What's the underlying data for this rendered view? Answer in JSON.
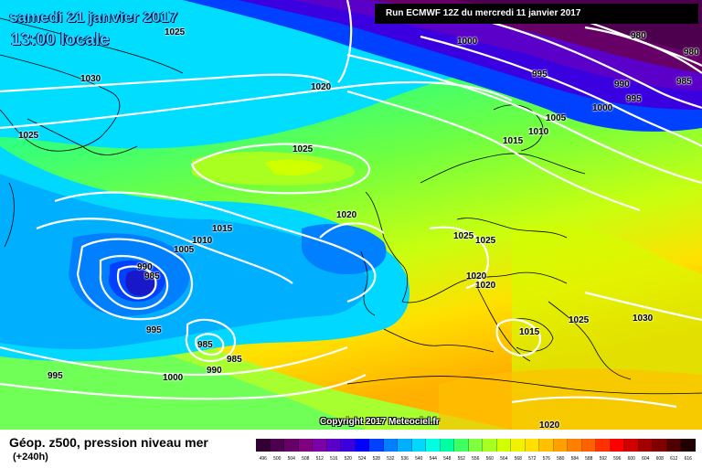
{
  "header": {
    "date": "samedi 21 janvier 2017",
    "time": "13:00 locale",
    "run_info": "Run ECMWF 12Z du mercredi 11 janvier 2017"
  },
  "copyright": "Copyright 2017 Meteociel.fr",
  "legend": {
    "title": "Géop. z500, pression niveau mer",
    "subtitle": "(+240h)",
    "scale_values": [
      "496",
      "500",
      "504",
      "508",
      "512",
      "516",
      "520",
      "524",
      "528",
      "532",
      "536",
      "540",
      "544",
      "548",
      "552",
      "556",
      "560",
      "564",
      "568",
      "572",
      "576",
      "580",
      "584",
      "588",
      "592",
      "596",
      "600",
      "604",
      "608",
      "612",
      "616"
    ],
    "scale_colors": [
      "#330033",
      "#4d004d",
      "#660066",
      "#800080",
      "#7a00a8",
      "#5a00c8",
      "#3a00e0",
      "#0000ff",
      "#0040ff",
      "#0080ff",
      "#00b0ff",
      "#00d8ff",
      "#00ffe0",
      "#00ffa0",
      "#40ff60",
      "#80ff40",
      "#a8ff20",
      "#d0ff00",
      "#f0f000",
      "#ffe000",
      "#ffc000",
      "#ffa000",
      "#ff8000",
      "#ff6000",
      "#ff3000",
      "#ff0000",
      "#d00000",
      "#a00000",
      "#800000",
      "#500000",
      "#200000"
    ]
  },
  "isobar_labels": [
    {
      "text": "1025",
      "name": "isobar-label-1025-a"
    },
    {
      "text": "1030",
      "name": "isobar-label-1030-a"
    },
    {
      "text": "1025",
      "name": "isobar-label-1025-b"
    },
    {
      "text": "1020",
      "name": "isobar-label-1020-a"
    },
    {
      "text": "1000",
      "name": "isobar-label-1000-a"
    },
    {
      "text": "980",
      "name": "isobar-label-980-a"
    },
    {
      "text": "980",
      "name": "isobar-label-980-b"
    },
    {
      "text": "995",
      "name": "isobar-label-995-a"
    },
    {
      "text": "990",
      "name": "isobar-label-990-a"
    },
    {
      "text": "985",
      "name": "isobar-label-985-a"
    },
    {
      "text": "995",
      "name": "isobar-label-995-b"
    },
    {
      "text": "1000",
      "name": "isobar-label-1000-b"
    },
    {
      "text": "1005",
      "name": "isobar-label-1005-a"
    },
    {
      "text": "1010",
      "name": "isobar-label-1010-a"
    },
    {
      "text": "1015",
      "name": "isobar-label-1015-a"
    },
    {
      "text": "1025",
      "name": "isobar-label-1025-c"
    },
    {
      "text": "1020",
      "name": "isobar-label-1020-b"
    },
    {
      "text": "1015",
      "name": "isobar-label-1015-b"
    },
    {
      "text": "1010",
      "name": "isobar-label-1010-b"
    },
    {
      "text": "1005",
      "name": "isobar-label-1005-b"
    },
    {
      "text": "990",
      "name": "isobar-label-990-b"
    },
    {
      "text": "985",
      "name": "isobar-label-985-b"
    },
    {
      "text": "995",
      "name": "isobar-label-995-c"
    },
    {
      "text": "985",
      "name": "isobar-label-985-c"
    },
    {
      "text": "985",
      "name": "isobar-label-985-d"
    },
    {
      "text": "990",
      "name": "isobar-label-990-c"
    },
    {
      "text": "1000",
      "name": "isobar-label-1000-c"
    },
    {
      "text": "995",
      "name": "isobar-label-995-d"
    },
    {
      "text": "1025",
      "name": "isobar-label-1025-d"
    },
    {
      "text": "1025",
      "name": "isobar-label-1025-e"
    },
    {
      "text": "1020",
      "name": "isobar-label-1020-c"
    },
    {
      "text": "1020",
      "name": "isobar-label-1020-d"
    },
    {
      "text": "1015",
      "name": "isobar-label-1015-c"
    },
    {
      "text": "1025",
      "name": "isobar-label-1025-f"
    },
    {
      "text": "1030",
      "name": "isobar-label-1030-b"
    },
    {
      "text": "1020",
      "name": "isobar-label-1020-e"
    }
  ]
}
